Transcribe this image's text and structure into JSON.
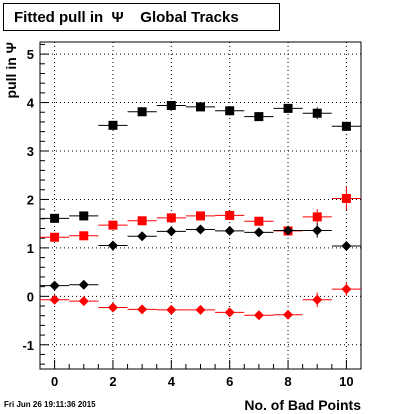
{
  "chart_data": {
    "type": "scatter",
    "title": "Fitted pull in  Ψ    Global Tracks",
    "xlabel": "No. of Bad Points",
    "ylabel": "pull in  Ψ",
    "xlim": [
      -0.5,
      10.5
    ],
    "ylim": [
      -1.5,
      5.25
    ],
    "xticks": [
      0,
      2,
      4,
      6,
      8,
      10
    ],
    "yticks": [
      -1,
      0,
      1,
      2,
      3,
      4,
      5
    ],
    "grid": true,
    "legend": "none",
    "series": [
      {
        "marker": "square",
        "color": "#000000",
        "x": [
          0,
          1,
          2,
          3,
          4,
          5,
          6,
          7,
          8,
          9,
          10
        ],
        "y": [
          1.61,
          1.66,
          3.53,
          3.81,
          3.94,
          3.91,
          3.83,
          3.71,
          3.88,
          3.78,
          3.51
        ],
        "yerr": [
          0.04,
          0.04,
          0.05,
          0.05,
          0.05,
          0.05,
          0.05,
          0.06,
          0.07,
          0.12,
          0.09
        ]
      },
      {
        "marker": "square",
        "color": "#ff0000",
        "x": [
          0,
          1,
          2,
          3,
          4,
          5,
          6,
          7,
          8,
          9,
          10
        ],
        "y": [
          1.22,
          1.25,
          1.47,
          1.56,
          1.62,
          1.66,
          1.67,
          1.55,
          1.35,
          1.64,
          2.02
        ],
        "yerr": [
          0.03,
          0.03,
          0.04,
          0.04,
          0.04,
          0.04,
          0.05,
          0.05,
          0.08,
          0.16,
          0.24
        ]
      },
      {
        "marker": "diamond",
        "color": "#000000",
        "x": [
          0,
          1,
          2,
          3,
          4,
          5,
          6,
          7,
          8,
          9,
          10
        ],
        "y": [
          0.22,
          0.24,
          1.05,
          1.24,
          1.34,
          1.38,
          1.35,
          1.32,
          1.36,
          1.36,
          1.04
        ],
        "yerr": [
          0.02,
          0.02,
          0.04,
          0.04,
          0.04,
          0.04,
          0.04,
          0.05,
          0.07,
          0.15,
          0.06
        ]
      },
      {
        "marker": "diamond",
        "color": "#ff0000",
        "x": [
          0,
          1,
          2,
          3,
          4,
          5,
          6,
          7,
          8,
          9,
          10
        ],
        "y": [
          -0.07,
          -0.1,
          -0.23,
          -0.27,
          -0.28,
          -0.28,
          -0.33,
          -0.39,
          -0.38,
          -0.07,
          0.15
        ],
        "yerr": [
          0.02,
          0.02,
          0.03,
          0.03,
          0.03,
          0.03,
          0.04,
          0.04,
          0.07,
          0.15,
          0.14
        ]
      }
    ]
  },
  "footer": {
    "timestamp": "Fri Jun 26 19:11:36 2015"
  }
}
